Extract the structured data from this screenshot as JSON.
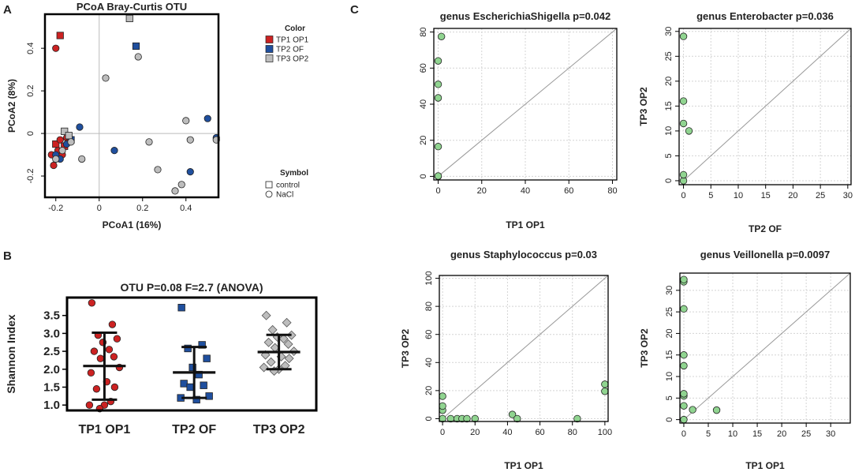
{
  "panel_labels": {
    "a": "A",
    "b": "B",
    "c": "C"
  },
  "chart_data": [
    {
      "id": "pcoa",
      "type": "scatter",
      "title": "PCoA Bray-Curtis OTU",
      "xlabel": "PCoA1 (16%)",
      "ylabel": "PCoA2 (8%)",
      "xlim": [
        -0.25,
        0.55
      ],
      "ylim": [
        -0.3,
        0.56
      ],
      "xticks": [
        -0.2,
        0.0,
        0.2,
        0.4
      ],
      "yticks": [
        -0.2,
        0.0,
        0.2,
        0.4
      ],
      "ref_lines": {
        "x": 0,
        "y": 0
      },
      "legend_color_title": "Color",
      "legend_symbol_title": "Symbol",
      "groups": [
        {
          "name": "TP1 OP1",
          "color": "#cc2222"
        },
        {
          "name": "TP2 OF",
          "color": "#1f4f9e"
        },
        {
          "name": "TP3 OP2",
          "color": "#bdbdbd"
        }
      ],
      "symbols": [
        {
          "name": "control",
          "shape": "square"
        },
        {
          "name": "NaCl",
          "shape": "circle"
        }
      ],
      "points": [
        {
          "x": -0.18,
          "y": 0.46,
          "g": 0,
          "s": 0
        },
        {
          "x": -0.2,
          "y": 0.4,
          "g": 0,
          "s": 1
        },
        {
          "x": -0.21,
          "y": -0.15,
          "g": 0,
          "s": 1
        },
        {
          "x": -0.19,
          "y": -0.08,
          "g": 0,
          "s": 1
        },
        {
          "x": -0.2,
          "y": -0.05,
          "g": 0,
          "s": 0
        },
        {
          "x": -0.17,
          "y": -0.1,
          "g": 0,
          "s": 1
        },
        {
          "x": -0.18,
          "y": -0.03,
          "g": 0,
          "s": 1
        },
        {
          "x": -0.16,
          "y": -0.06,
          "g": 0,
          "s": 0
        },
        {
          "x": -0.15,
          "y": -0.02,
          "g": 0,
          "s": 1
        },
        {
          "x": -0.14,
          "y": -0.04,
          "g": 0,
          "s": 1
        },
        {
          "x": -0.22,
          "y": -0.1,
          "g": 0,
          "s": 1
        },
        {
          "x": 0.17,
          "y": 0.41,
          "g": 1,
          "s": 0
        },
        {
          "x": -0.09,
          "y": 0.03,
          "g": 1,
          "s": 1
        },
        {
          "x": 0.07,
          "y": -0.08,
          "g": 1,
          "s": 1
        },
        {
          "x": 0.5,
          "y": 0.07,
          "g": 1,
          "s": 1
        },
        {
          "x": 0.42,
          "y": -0.18,
          "g": 1,
          "s": 1
        },
        {
          "x": -0.2,
          "y": -0.1,
          "g": 1,
          "s": 1
        },
        {
          "x": -0.18,
          "y": -0.12,
          "g": 1,
          "s": 1
        },
        {
          "x": -0.13,
          "y": -0.03,
          "g": 1,
          "s": 0
        },
        {
          "x": 0.54,
          "y": -0.02,
          "g": 1,
          "s": 1
        },
        {
          "x": -0.15,
          "y": -0.05,
          "g": 1,
          "s": 1
        },
        {
          "x": 0.14,
          "y": 0.54,
          "g": 2,
          "s": 0
        },
        {
          "x": 0.18,
          "y": 0.36,
          "g": 2,
          "s": 1
        },
        {
          "x": 0.03,
          "y": 0.26,
          "g": 2,
          "s": 1
        },
        {
          "x": -0.08,
          "y": -0.12,
          "g": 2,
          "s": 1
        },
        {
          "x": 0.23,
          "y": -0.04,
          "g": 2,
          "s": 1
        },
        {
          "x": 0.27,
          "y": -0.17,
          "g": 2,
          "s": 1
        },
        {
          "x": 0.35,
          "y": -0.27,
          "g": 2,
          "s": 1
        },
        {
          "x": 0.38,
          "y": -0.24,
          "g": 2,
          "s": 1
        },
        {
          "x": 0.4,
          "y": 0.06,
          "g": 2,
          "s": 1
        },
        {
          "x": 0.42,
          "y": -0.03,
          "g": 2,
          "s": 1
        },
        {
          "x": 0.54,
          "y": -0.03,
          "g": 2,
          "s": 1
        },
        {
          "x": -0.16,
          "y": 0.01,
          "g": 2,
          "s": 0
        },
        {
          "x": -0.14,
          "y": -0.01,
          "g": 2,
          "s": 0
        },
        {
          "x": -0.2,
          "y": -0.12,
          "g": 2,
          "s": 1
        },
        {
          "x": -0.17,
          "y": -0.08,
          "g": 2,
          "s": 1
        },
        {
          "x": -0.13,
          "y": -0.04,
          "g": 2,
          "s": 1
        }
      ]
    },
    {
      "id": "shannon",
      "type": "scatter",
      "title": "OTU P=0.08 F=2.7 (ANOVA)",
      "ylabel": "Shannon Index",
      "ylim": [
        0.85,
        4.0
      ],
      "yticks": [
        1.0,
        1.5,
        2.0,
        2.5,
        3.0,
        3.5
      ],
      "ytick_labels": [
        "1.0",
        "1.5",
        "2.0",
        "2.5",
        "3.0",
        "3.5"
      ],
      "categories": [
        "TP1 OP1",
        "TP2 OF",
        "TP3 OP2"
      ],
      "groups": [
        {
          "name": "TP1 OP1",
          "color": "#cc2222",
          "shape": "circle",
          "mean": 2.09,
          "sd_low": 1.15,
          "sd_high": 3.02,
          "values": [
            3.85,
            3.25,
            2.95,
            2.85,
            2.75,
            2.55,
            2.5,
            2.35,
            2.3,
            2.05,
            1.9,
            1.65,
            1.5,
            1.45,
            1.1,
            1.0,
            1.0,
            0.9
          ]
        },
        {
          "name": "TP2 OF",
          "color": "#1f4f9e",
          "shape": "square",
          "mean": 1.91,
          "sd_low": 1.2,
          "sd_high": 2.62,
          "values": [
            3.72,
            2.68,
            2.58,
            2.3,
            2.05,
            1.85,
            1.6,
            1.55,
            1.5,
            1.25,
            1.2,
            1.15
          ]
        },
        {
          "name": "TP3 OP2",
          "color": "#bdbdbd",
          "shape": "diamond",
          "mean": 2.48,
          "sd_low": 2.0,
          "sd_high": 2.96,
          "values": [
            3.5,
            3.3,
            3.1,
            2.95,
            2.9,
            2.85,
            2.75,
            2.7,
            2.6,
            2.5,
            2.4,
            2.35,
            2.3,
            2.2,
            2.1,
            2.05,
            2.0,
            1.95
          ]
        }
      ]
    },
    {
      "id": "escherichia",
      "type": "scatter",
      "title": "genus EscherichiaShigella p=0.042",
      "xlabel": "TP1 OP1",
      "ylabel": "",
      "xlim": [
        -2,
        82
      ],
      "ylim": [
        -2,
        82
      ],
      "xticks": [
        0,
        20,
        40,
        60,
        80
      ],
      "yticks": [
        0,
        20,
        40,
        60,
        80
      ],
      "grid": true,
      "diagonal": true,
      "color": "#90d490",
      "points": [
        [
          0,
          0
        ],
        [
          0,
          0.2
        ],
        [
          0,
          16.5
        ],
        [
          0,
          43.5
        ],
        [
          0,
          51
        ],
        [
          0,
          64
        ],
        [
          1.5,
          77.5
        ]
      ]
    },
    {
      "id": "enterobacter",
      "type": "scatter",
      "title": "genus Enterobacter p=0.036",
      "xlabel": "TP2 OF",
      "ylabel": "TP3 OP2",
      "xlim": [
        -0.8,
        30.6
      ],
      "ylim": [
        -0.8,
        30.6
      ],
      "xticks": [
        0,
        5,
        10,
        15,
        20,
        25,
        30
      ],
      "yticks": [
        0,
        5,
        10,
        15,
        20,
        25,
        30
      ],
      "grid": true,
      "diagonal": true,
      "color": "#90d490",
      "points": [
        [
          0,
          0
        ],
        [
          0,
          1.2
        ],
        [
          0,
          11.5
        ],
        [
          0,
          16
        ],
        [
          0,
          29
        ],
        [
          1,
          10
        ]
      ]
    },
    {
      "id": "staphylococcus",
      "type": "scatter",
      "title": "genus Staphylococcus p=0.03",
      "xlabel": "TP1 OP1",
      "ylabel": "TP3 OP2",
      "xlim": [
        -2,
        102
      ],
      "ylim": [
        -2,
        102
      ],
      "xticks": [
        0,
        20,
        40,
        60,
        80,
        100
      ],
      "yticks": [
        0,
        20,
        40,
        60,
        80,
        100
      ],
      "grid": true,
      "diagonal": true,
      "color": "#90d490",
      "points": [
        [
          0,
          0
        ],
        [
          0,
          6
        ],
        [
          0,
          9
        ],
        [
          0,
          16
        ],
        [
          5,
          0
        ],
        [
          9,
          0
        ],
        [
          12,
          0
        ],
        [
          15,
          0
        ],
        [
          20,
          0
        ],
        [
          43,
          3
        ],
        [
          46,
          0
        ],
        [
          83,
          0
        ],
        [
          100,
          19.5
        ],
        [
          100,
          24.5
        ]
      ]
    },
    {
      "id": "veillonella",
      "type": "scatter",
      "title": "genus Veillonella p=0.0097",
      "xlabel": "TP1 OP1",
      "ylabel": "TP3 OP2",
      "xlim": [
        -0.8,
        34
      ],
      "ylim": [
        -0.8,
        34
      ],
      "xticks": [
        0,
        5,
        10,
        15,
        20,
        25,
        30
      ],
      "yticks": [
        0,
        5,
        10,
        15,
        20,
        25,
        30
      ],
      "grid": true,
      "diagonal": true,
      "color": "#90d490",
      "points": [
        [
          0,
          0
        ],
        [
          0,
          3.2
        ],
        [
          0,
          5.5
        ],
        [
          0,
          6
        ],
        [
          0,
          12.5
        ],
        [
          0,
          15
        ],
        [
          0,
          25.7
        ],
        [
          0,
          32
        ],
        [
          0,
          32.5
        ],
        [
          1.8,
          2.3
        ],
        [
          6.7,
          2.2
        ]
      ]
    }
  ]
}
